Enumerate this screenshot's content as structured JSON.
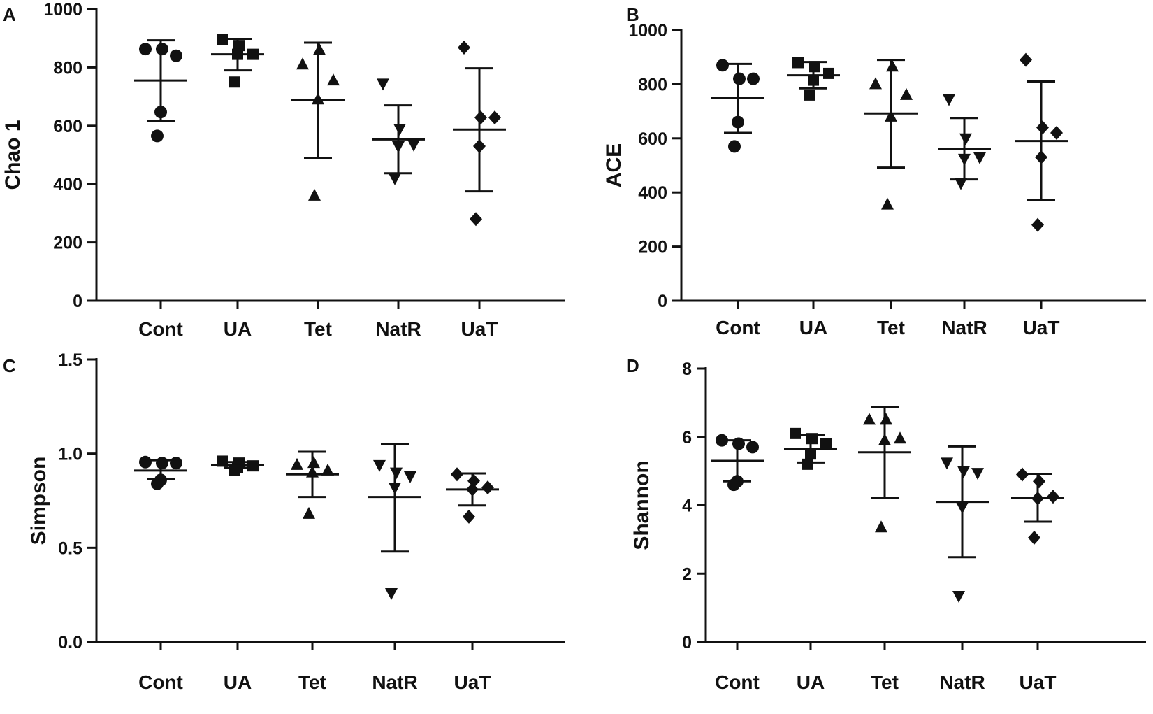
{
  "chart_data": [
    {
      "panel": "A",
      "type": "scatter",
      "ylabel": "Chao 1",
      "ylim": [
        0,
        1000
      ],
      "yticks": [
        "0",
        "200",
        "400",
        "600",
        "800",
        "1000"
      ],
      "categories": [
        "Cont",
        "UA",
        "Tet",
        "NatR",
        "UaT"
      ],
      "groups": [
        {
          "name": "Cont",
          "marker": "circle",
          "points": [
            863,
            863,
            840,
            647,
            565
          ],
          "mean": 755,
          "sd_low": 615,
          "sd_high": 893
        },
        {
          "name": "UA",
          "marker": "square",
          "points": [
            895,
            875,
            845,
            845,
            750
          ],
          "mean": 845,
          "sd_low": 790,
          "sd_high": 898
        },
        {
          "name": "Tet",
          "marker": "triangle-up",
          "points": [
            810,
            860,
            755,
            690,
            360
          ],
          "mean": 688,
          "sd_low": 490,
          "sd_high": 885
        },
        {
          "name": "NatR",
          "marker": "triangle-down",
          "points": [
            745,
            590,
            535,
            530,
            420
          ],
          "mean": 553,
          "sd_low": 437,
          "sd_high": 670
        },
        {
          "name": "UaT",
          "marker": "diamond",
          "points": [
            868,
            628,
            628,
            530,
            280
          ],
          "mean": 587,
          "sd_low": 375,
          "sd_high": 797
        }
      ]
    },
    {
      "panel": "B",
      "type": "scatter",
      "ylabel": "ACE",
      "ylim": [
        0,
        1000
      ],
      "yticks": [
        "0",
        "200",
        "400",
        "600",
        "800",
        "1000"
      ],
      "categories": [
        "Cont",
        "UA",
        "Tet",
        "NatR",
        "UaT"
      ],
      "groups": [
        {
          "name": "Cont",
          "marker": "circle",
          "points": [
            870,
            820,
            820,
            660,
            570
          ],
          "mean": 750,
          "sd_low": 620,
          "sd_high": 875
        },
        {
          "name": "UA",
          "marker": "square",
          "points": [
            880,
            865,
            840,
            815,
            760
          ],
          "mean": 833,
          "sd_low": 785,
          "sd_high": 882
        },
        {
          "name": "Tet",
          "marker": "triangle-up",
          "points": [
            800,
            865,
            760,
            680,
            355
          ],
          "mean": 692,
          "sd_low": 492,
          "sd_high": 890
        },
        {
          "name": "NatR",
          "marker": "triangle-down",
          "points": [
            745,
            600,
            530,
            525,
            435
          ],
          "mean": 562,
          "sd_low": 448,
          "sd_high": 675
        },
        {
          "name": "UaT",
          "marker": "diamond",
          "points": [
            890,
            640,
            620,
            530,
            280
          ],
          "mean": 590,
          "sd_low": 372,
          "sd_high": 810
        }
      ]
    },
    {
      "panel": "C",
      "type": "scatter",
      "ylabel": "Simpson",
      "ylim": [
        0,
        1.5
      ],
      "yticks": [
        "0.0",
        "0.5",
        "1.0",
        "1.5"
      ],
      "categories": [
        "Cont",
        "UA",
        "Tet",
        "NatR",
        "UaT"
      ],
      "groups": [
        {
          "name": "Cont",
          "marker": "circle",
          "points": [
            0.955,
            0.95,
            0.95,
            0.86,
            0.84
          ],
          "mean": 0.91,
          "sd_low": 0.865,
          "sd_high": 0.965
        },
        {
          "name": "UA",
          "marker": "square",
          "points": [
            0.96,
            0.95,
            0.935,
            0.925,
            0.91
          ],
          "mean": 0.94,
          "sd_low": 0.925,
          "sd_high": 0.955
        },
        {
          "name": "Tet",
          "marker": "triangle-up",
          "points": [
            0.94,
            0.95,
            0.91,
            0.9,
            0.68
          ],
          "mean": 0.89,
          "sd_low": 0.77,
          "sd_high": 1.01
        },
        {
          "name": "NatR",
          "marker": "triangle-down",
          "points": [
            0.94,
            0.9,
            0.88,
            0.82,
            0.26
          ],
          "mean": 0.77,
          "sd_low": 0.48,
          "sd_high": 1.05
        },
        {
          "name": "UaT",
          "marker": "diamond",
          "points": [
            0.89,
            0.855,
            0.82,
            0.81,
            0.665
          ],
          "mean": 0.81,
          "sd_low": 0.725,
          "sd_high": 0.895
        }
      ]
    },
    {
      "panel": "D",
      "type": "scatter",
      "ylabel": "Shannon",
      "ylim": [
        0,
        8
      ],
      "yticks": [
        "0",
        "2",
        "4",
        "6",
        "8"
      ],
      "categories": [
        "Cont",
        "UA",
        "Tet",
        "NatR",
        "UaT"
      ],
      "groups": [
        {
          "name": "Cont",
          "marker": "circle",
          "points": [
            5.9,
            5.8,
            5.7,
            4.7,
            4.6
          ],
          "mean": 5.3,
          "sd_low": 4.7,
          "sd_high": 5.9
        },
        {
          "name": "UA",
          "marker": "square",
          "points": [
            6.1,
            5.95,
            5.8,
            5.5,
            5.2
          ],
          "mean": 5.65,
          "sd_low": 5.25,
          "sd_high": 6.05
        },
        {
          "name": "Tet",
          "marker": "triangle-up",
          "points": [
            6.5,
            6.5,
            5.95,
            5.9,
            3.35
          ],
          "mean": 5.55,
          "sd_low": 4.22,
          "sd_high": 6.88
        },
        {
          "name": "NatR",
          "marker": "triangle-down",
          "points": [
            5.25,
            5.0,
            4.95,
            3.95,
            1.35
          ],
          "mean": 4.1,
          "sd_low": 2.48,
          "sd_high": 5.72
        },
        {
          "name": "UaT",
          "marker": "diamond",
          "points": [
            4.9,
            4.7,
            4.25,
            4.2,
            3.05
          ],
          "mean": 4.22,
          "sd_low": 3.52,
          "sd_high": 4.92
        }
      ]
    }
  ]
}
